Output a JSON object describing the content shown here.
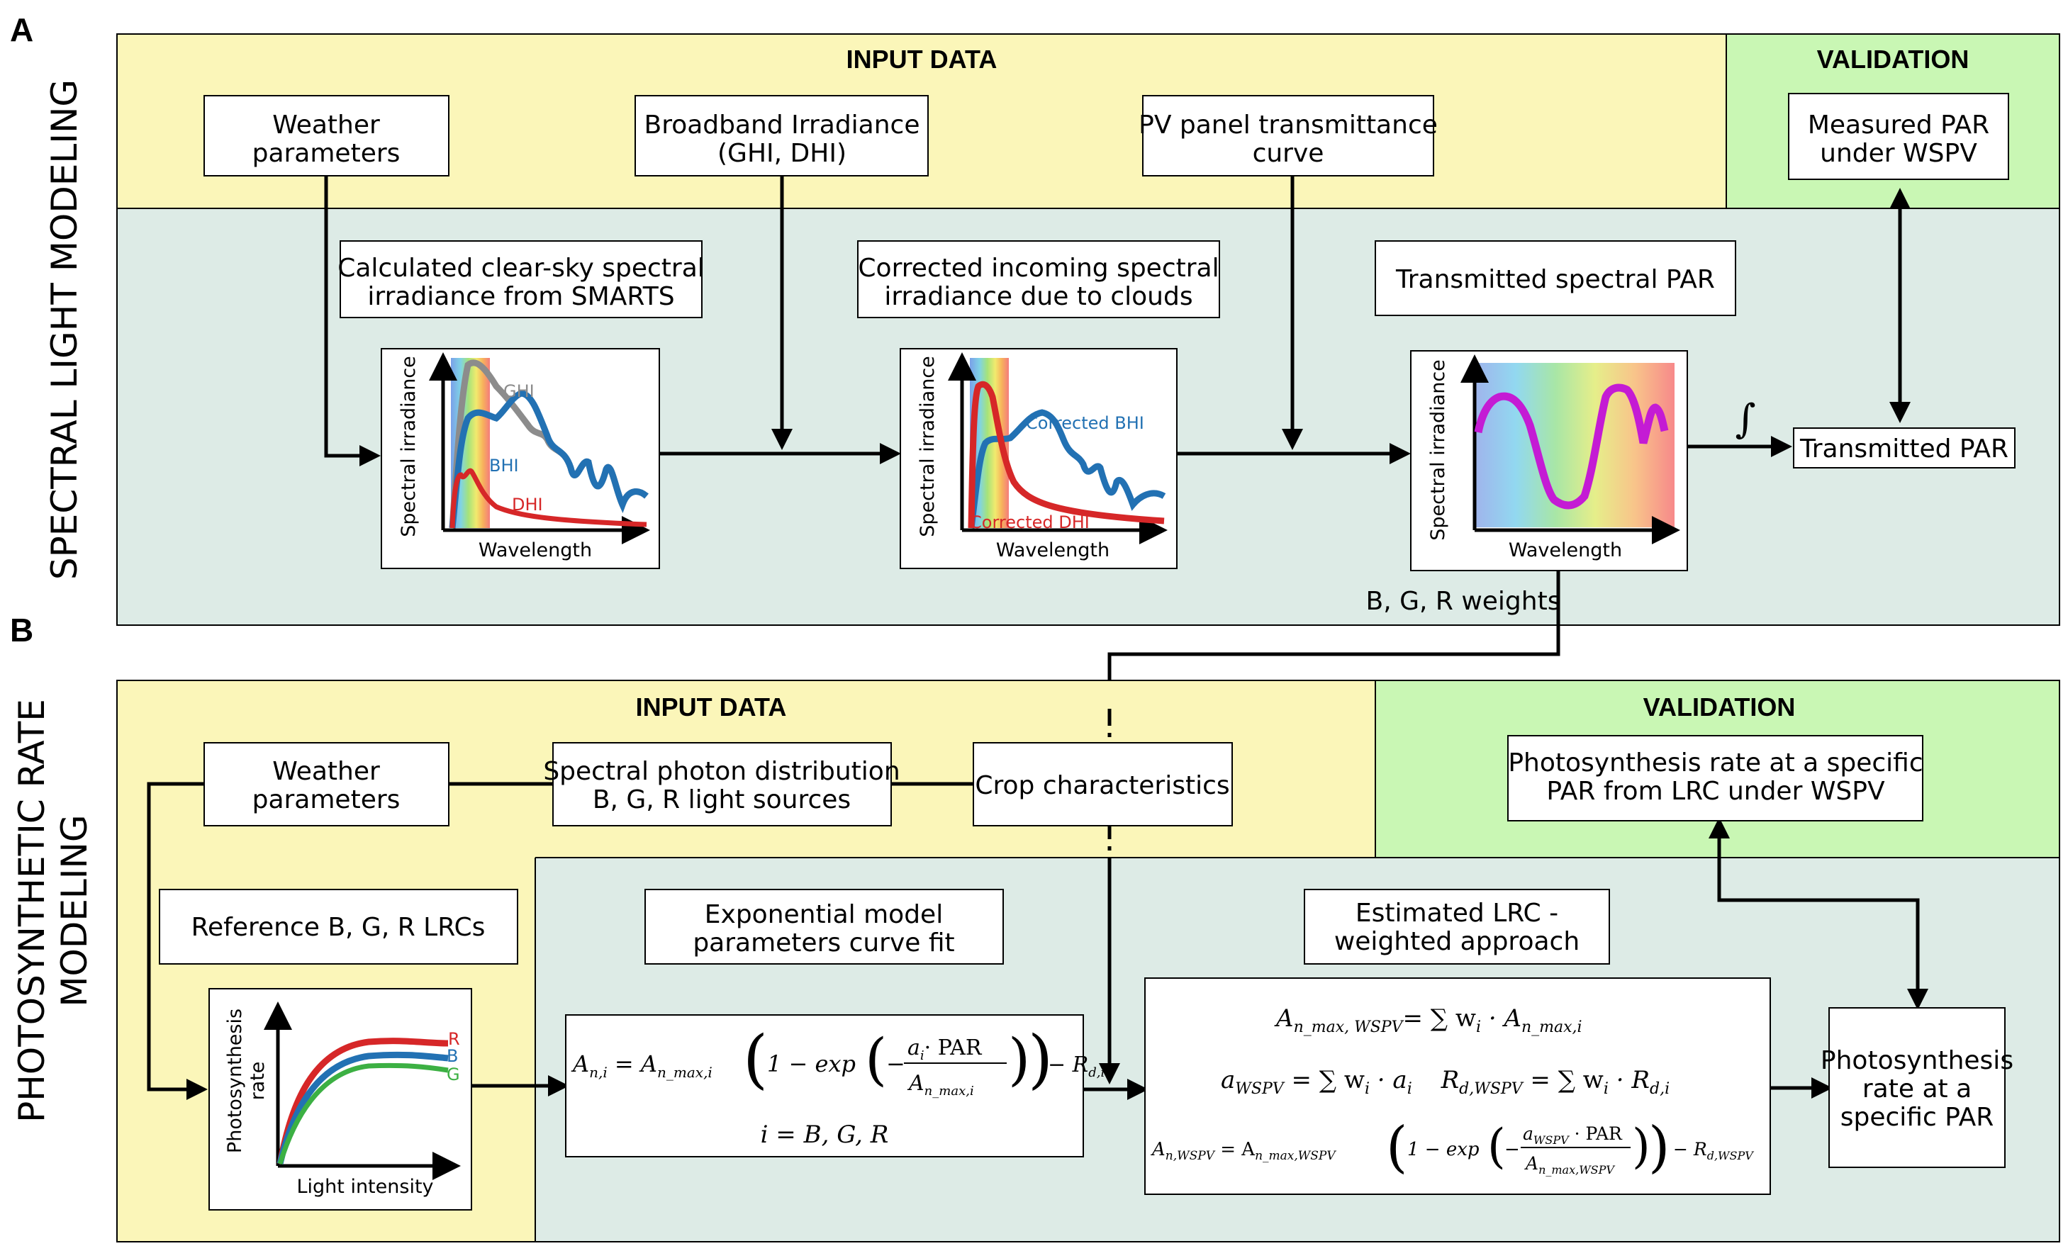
{
  "panels": {
    "a_letter": "A",
    "b_letter": "B",
    "a_side_title": "SPECTRAL LIGHT MODELING",
    "b_side_title_line1": "PHOTOSYNTHETIC RATE",
    "b_side_title_line2": "MODELING"
  },
  "colors": {
    "input_bg": "#fbf6b9",
    "validation_bg": "#c9f7b4",
    "model_bg": "#ddebe6",
    "ghi": "#8c8c8c",
    "bhi": "#2271b3",
    "dhi": "#d62728",
    "par": "#c41bd4",
    "lrc_r": "#d62728",
    "lrc_b": "#2271b3",
    "lrc_g": "#3cb043"
  },
  "panel_a": {
    "input_header": "INPUT DATA",
    "validation_header": "VALIDATION",
    "weather": [
      "Weather",
      "parameters"
    ],
    "broadband": [
      "Broadband Irradiance",
      "(GHI, DHI)"
    ],
    "pv_curve": [
      "PV panel transmittance",
      "curve"
    ],
    "measured_par": [
      "Measured PAR",
      "under WSPV"
    ],
    "clear_sky": [
      "Calculated clear-sky spectral",
      "irradiance from SMARTS"
    ],
    "corrected": [
      "Corrected incoming spectral",
      "irradiance due to clouds"
    ],
    "transmitted_spectral": "Transmitted spectral PAR",
    "transmitted_par": "Transmitted PAR",
    "integral_symbol": "∫",
    "weights_label": "B, G, R weights",
    "plot1": {
      "ylabel": "Spectral irradiance",
      "xlabel": "Wavelength",
      "series": [
        "GHI",
        "BHI",
        "DHI"
      ]
    },
    "plot2": {
      "ylabel": "Spectral irradiance",
      "xlabel": "Wavelength",
      "series": [
        "Corrected BHI",
        "Corrected DHI"
      ]
    },
    "plot3": {
      "ylabel": "Spectral irradiance",
      "xlabel": "Wavelength"
    }
  },
  "panel_b": {
    "input_header": "INPUT DATA",
    "validation_header": "VALIDATION",
    "weather": [
      "Weather",
      "parameters"
    ],
    "spectral_photon": [
      "Spectral photon distribution",
      "B, G, R light sources"
    ],
    "crop": "Crop characteristics",
    "validation_box": [
      "Photosynthesis rate at a specific",
      "PAR from LRC under WSPV"
    ],
    "reference_lrc": "Reference B, G, R LRCs",
    "exp_model": [
      "Exponential model",
      "parameters curve fit"
    ],
    "estimated_lrc": [
      "Estimated LRC -",
      "weighted approach"
    ],
    "output": [
      "Photosynthesis",
      "rate at a",
      "specific PAR"
    ],
    "lrc_plot": {
      "ylabel_line1": "Photosynthesis",
      "ylabel_line2": "rate",
      "xlabel": "Light intensity",
      "series": [
        "R",
        "B",
        "G"
      ]
    },
    "eq1": {
      "lhs": "A",
      "lhs_sub": "n,i",
      "eqs": "= ",
      "amax": "A",
      "amax_sub": "n_max,i",
      "open": "1 − exp",
      "minus": "−",
      "num": "a",
      "num_sub": "i",
      "dot_par": "· PAR",
      "den": "A",
      "den_sub": "n_max,i",
      "rd": "− R",
      "rd_sub": "d,i"
    },
    "eq1_index": "i = B, G, R",
    "eq2": {
      "lhs": "A",
      "lhs_sub": "n_max, WSPV",
      "rhs": "= ∑ w",
      "rhs_sub": "i",
      "rhs2": " · A",
      "rhs2_sub": "n_max,i"
    },
    "eq3": {
      "a": "a",
      "a_sub": "WSPV",
      "mid": " = ∑ w",
      "mid_sub": "i",
      "mid2": " · a",
      "mid2_sub": "i",
      "r": "R",
      "r_sub": "d,WSPV",
      "r_mid": " = ∑ w",
      "r_mid_sub": "i",
      "r_mid2": " · R",
      "r_mid2_sub": "d,i"
    },
    "eq4": {
      "lhs": "A",
      "lhs_sub": "n,WSPV",
      "eqs": " = A",
      "eqs_sub": "n_max,WSPV",
      "open": "1 − exp",
      "minus": "−",
      "num": "a",
      "num_sub": "WSPV",
      "dot_par": " · PAR",
      "den": "A",
      "den_sub": "n_max,WSPV",
      "rd": "− R",
      "rd_sub": "d,WSPV"
    }
  }
}
